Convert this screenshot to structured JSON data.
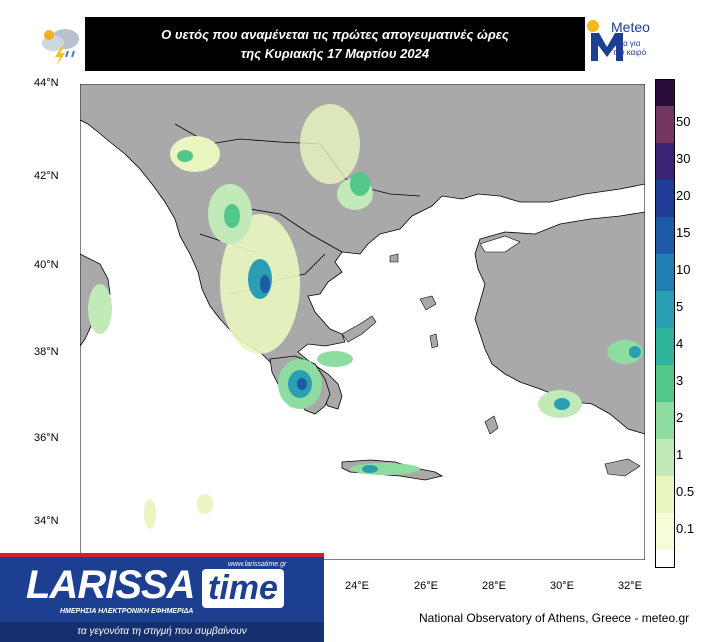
{
  "header": {
    "title_line1": "Ο υετός που αναμένεται τις πρώτες απογευματινές ώρες",
    "title_line2": "της Κυριακής 17 Μαρτίου 2024",
    "brand_name": "Meteo",
    "brand_tagline": "Όλα για τον καιρό"
  },
  "map": {
    "lat_labels": [
      "44°N",
      "42°N",
      "40°N",
      "38°N",
      "36°N",
      "34°N"
    ],
    "lon_labels": [
      "24°E",
      "26°E",
      "28°E",
      "30°E",
      "32°E"
    ],
    "colors": {
      "sea": "#ffffff",
      "land": "#a9a9a9",
      "border": "#000000"
    }
  },
  "legend": {
    "levels": [
      {
        "label": "50",
        "color": "#733662"
      },
      {
        "label": "30",
        "color": "#3a2377"
      },
      {
        "label": "20",
        "color": "#1f3d95"
      },
      {
        "label": "15",
        "color": "#1d5ba6"
      },
      {
        "label": "10",
        "color": "#2280b0"
      },
      {
        "label": "5",
        "color": "#2a9fb3"
      },
      {
        "label": "4",
        "color": "#2fb39b"
      },
      {
        "label": "3",
        "color": "#53c689"
      },
      {
        "label": "2",
        "color": "#8edc9f"
      },
      {
        "label": "1",
        "color": "#c2eab9"
      },
      {
        "label": "0.5",
        "color": "#e9f6bf"
      },
      {
        "label": "0.1",
        "color": "#f7fbd8"
      }
    ],
    "top_color": "#2a0b3a",
    "bottom_color": "#ffffff"
  },
  "credit": "National Observatory of Athens, Greece - meteo.gr",
  "logo": {
    "main": "LARISSA",
    "time": "time",
    "url": "www.larissatime.gr",
    "subtitle": "ΗΜΕΡΗΣΙΑ ΗΛΕΚΤΡΟΝΙΚΗ ΕΦΗΜΕΡΙΔΑ",
    "slogan": "τα γεγονότα τη στιγμή που συμβαίνουν"
  }
}
